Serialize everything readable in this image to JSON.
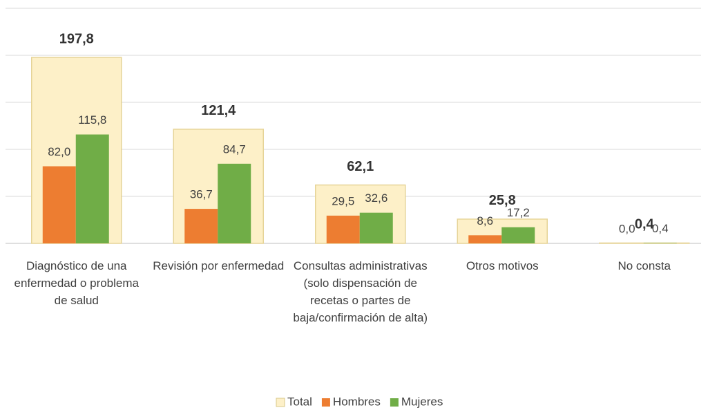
{
  "chart_data": {
    "type": "bar",
    "categories": [
      "Diagnóstico de una enfermedad o problema  de salud",
      "Revisión por enfermedad",
      "Consultas administrativas (solo dispensación de recetas o partes de baja/confirmación de alta)",
      "Otros motivos",
      "No consta"
    ],
    "series": [
      {
        "name": "Total",
        "color": "#fdf0c8",
        "values": [
          197.8,
          121.4,
          62.1,
          25.8,
          0.4
        ],
        "value_labels": [
          "197,8",
          "121,4",
          "62,1",
          "25,8",
          "0,4"
        ]
      },
      {
        "name": "Hombres",
        "color": "#ed7d31",
        "values": [
          82.0,
          36.7,
          29.5,
          8.6,
          0.0
        ],
        "value_labels": [
          "82,0",
          "36,7",
          "29,5",
          "8,6",
          "0,0"
        ]
      },
      {
        "name": "Mujeres",
        "color": "#70ad47",
        "values": [
          115.8,
          84.7,
          32.6,
          17.2,
          0.4
        ],
        "value_labels": [
          "115,8",
          "84,7",
          "32,6",
          "17,2",
          "0,4"
        ]
      }
    ],
    "ylim": [
      0,
      250
    ],
    "yticks": [
      0,
      50,
      100,
      150,
      200,
      250
    ],
    "grid": true,
    "legend": "bottom"
  }
}
